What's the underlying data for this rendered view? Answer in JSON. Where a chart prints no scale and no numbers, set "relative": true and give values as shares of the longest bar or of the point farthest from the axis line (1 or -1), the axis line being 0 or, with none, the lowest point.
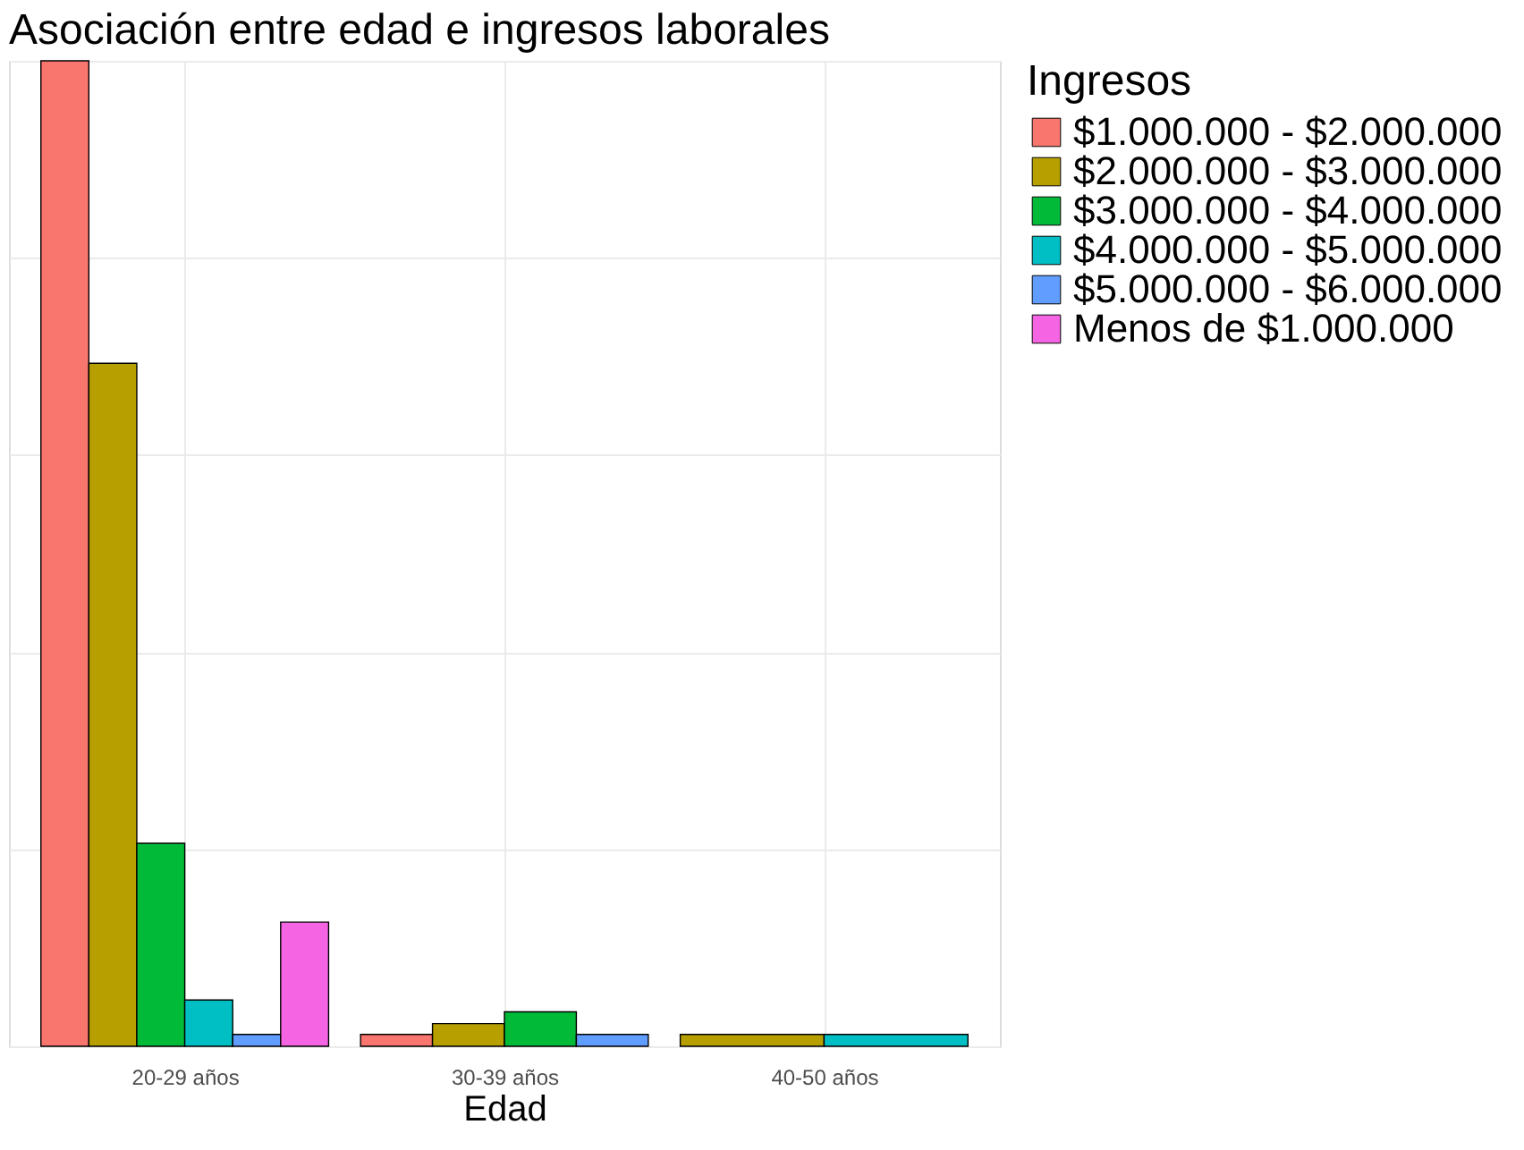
{
  "chart_data": {
    "type": "bar",
    "title": "Asociación entre edad e ingresos laborales",
    "xlabel": "Edad",
    "legend_title": "Ingresos",
    "legend": "right",
    "grid": true,
    "relative": true,
    "categories": [
      "20-29 años",
      "30-39 años",
      "40-50 años"
    ],
    "series": [
      {
        "name": "$1.000.000 - $2.000.000",
        "color": "#f8766d",
        "values": [
          1,
          0.012,
          null
        ]
      },
      {
        "name": "$2.000.000 - $3.000.000",
        "color": "#b79f00",
        "values": [
          0.693,
          0.023,
          0.012
        ]
      },
      {
        "name": "$3.000.000 - $4.000.000",
        "color": "#00ba38",
        "values": [
          0.206,
          0.035,
          null
        ]
      },
      {
        "name": "$4.000.000 - $5.000.000",
        "color": "#00bfc4",
        "values": [
          0.047,
          null,
          0.012
        ]
      },
      {
        "name": "$5.000.000 - $6.000.000",
        "color": "#619cff",
        "values": [
          0.012,
          0.012,
          null
        ]
      },
      {
        "name": "Menos de $1.000.000",
        "color": "#f564e3",
        "values": [
          0.126,
          null,
          null
        ]
      }
    ]
  }
}
